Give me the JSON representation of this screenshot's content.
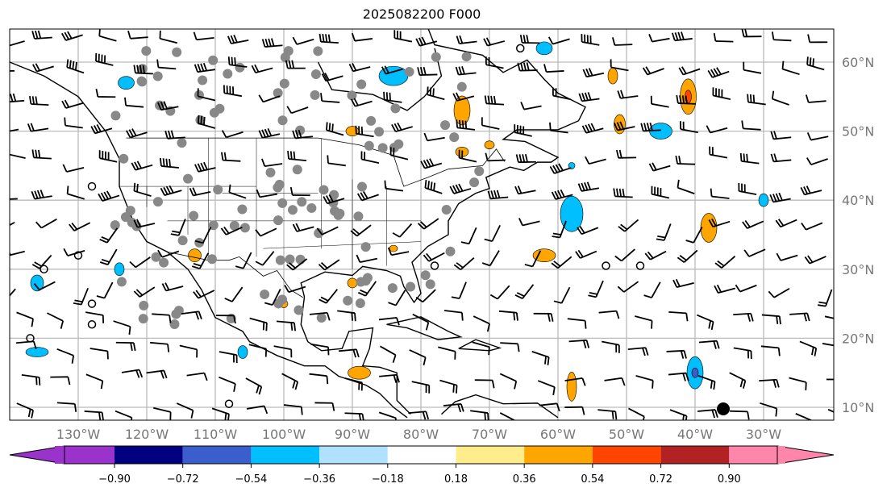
{
  "title": "2025082200 F000",
  "lon_labels": [
    "130°W",
    "120°W",
    "110°W",
    "100°W",
    "90°W",
    "80°W",
    "70°W",
    "60°W",
    "50°W",
    "40°W",
    "30°W"
  ],
  "lat_labels": [
    "60°N",
    "50°N",
    "40°N",
    "30°N",
    "20°N",
    "10°N"
  ],
  "colorbar": {
    "ticks": [
      "−0.90",
      "−0.72",
      "−0.54",
      "−0.36",
      "−0.18",
      "0.18",
      "0.36",
      "0.54",
      "0.72",
      "0.90"
    ],
    "colors": [
      "#9933cc",
      "#000080",
      "#3a5fcd",
      "#00bfff",
      "#b0e2ff",
      "#ffffff",
      "#ffec8b",
      "#ffa500",
      "#ff4500",
      "#b22222",
      "#ff85ab"
    ]
  }
}
